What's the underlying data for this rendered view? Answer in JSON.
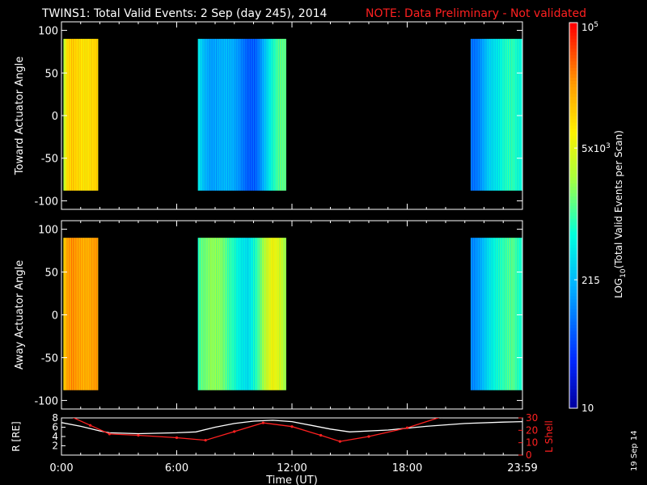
{
  "header": {
    "title": "TWINS1: Total Valid Events:  2 Sep (day 245), 2014",
    "note": "NOTE: Data Preliminary - Not validated"
  },
  "side_stamp": "19 Sep 14",
  "colorbar": {
    "label": "LOG10(Total Valid Events per Scan)",
    "ticks": [
      "10",
      "215",
      "5x10^3",
      "10^5"
    ],
    "tick_values": [
      10,
      215,
      5000,
      100000
    ],
    "scale": "log"
  },
  "chart_data": [
    {
      "type": "heatmap",
      "ylabel": "Toward Actuator Angle",
      "ylim": [
        -110,
        110
      ],
      "yticks": [
        100,
        50,
        0,
        -50,
        -100
      ],
      "data_angle_range": [
        -88,
        90
      ],
      "xlim_hours": [
        0,
        24
      ],
      "data_blocks_hours": [
        [
          0.1,
          2.0
        ],
        [
          7.1,
          11.7
        ],
        [
          21.3,
          24.0
        ]
      ],
      "level_profile_hours": [
        [
          0.1,
          0.55
        ],
        [
          0.3,
          0.72
        ],
        [
          0.6,
          0.78
        ],
        [
          1.0,
          0.79
        ],
        [
          1.5,
          0.78
        ],
        [
          1.9,
          0.76
        ],
        [
          7.1,
          0.45
        ],
        [
          7.3,
          0.4
        ],
        [
          7.8,
          0.33
        ],
        [
          8.3,
          0.3
        ],
        [
          8.7,
          0.27
        ],
        [
          9.2,
          0.25
        ],
        [
          9.7,
          0.23
        ],
        [
          10.1,
          0.25
        ],
        [
          10.6,
          0.35
        ],
        [
          11.0,
          0.42
        ],
        [
          11.4,
          0.48
        ],
        [
          11.7,
          0.5
        ],
        [
          21.3,
          0.27
        ],
        [
          21.7,
          0.28
        ],
        [
          22.2,
          0.33
        ],
        [
          22.7,
          0.35
        ],
        [
          23.1,
          0.45
        ],
        [
          23.5,
          0.52
        ],
        [
          24.0,
          0.48
        ]
      ],
      "colormap": "rainbow"
    },
    {
      "type": "heatmap",
      "ylabel": "Away Actuator Angle",
      "ylim": [
        -110,
        110
      ],
      "yticks": [
        100,
        50,
        0,
        -50,
        -100
      ],
      "data_angle_range": [
        -88,
        90
      ],
      "xlim_hours": [
        0,
        24
      ],
      "data_blocks_hours": [
        [
          0.1,
          2.0
        ],
        [
          7.1,
          11.7
        ],
        [
          21.3,
          24.0
        ]
      ],
      "level_profile_hours": [
        [
          0.1,
          0.7
        ],
        [
          0.3,
          0.8
        ],
        [
          0.6,
          0.86
        ],
        [
          1.0,
          0.87
        ],
        [
          1.5,
          0.86
        ],
        [
          1.9,
          0.84
        ],
        [
          7.1,
          0.5
        ],
        [
          7.3,
          0.58
        ],
        [
          7.8,
          0.62
        ],
        [
          8.3,
          0.55
        ],
        [
          8.7,
          0.45
        ],
        [
          9.2,
          0.4
        ],
        [
          9.7,
          0.42
        ],
        [
          10.1,
          0.52
        ],
        [
          10.6,
          0.63
        ],
        [
          11.0,
          0.66
        ],
        [
          11.4,
          0.6
        ],
        [
          11.7,
          0.55
        ],
        [
          21.3,
          0.3
        ],
        [
          21.7,
          0.32
        ],
        [
          22.2,
          0.36
        ],
        [
          22.7,
          0.4
        ],
        [
          23.1,
          0.48
        ],
        [
          23.5,
          0.56
        ],
        [
          24.0,
          0.5
        ]
      ],
      "colormap": "rainbow"
    },
    {
      "type": "line",
      "xlabel": "Time (UT)",
      "xticks": [
        "0:00",
        "6:00",
        "12:00",
        "18:00",
        "23:59"
      ],
      "xtick_hours": [
        0,
        6,
        12,
        18,
        24
      ],
      "ylabel_left": "R [RE]",
      "ylim_left": [
        0,
        8
      ],
      "yticks_left": [
        8,
        6,
        4,
        2
      ],
      "ylabel_right": "L Shell",
      "ylim_right": [
        0,
        30
      ],
      "yticks_right": [
        30,
        20,
        10,
        0
      ],
      "series": [
        {
          "name": "R [RE]",
          "axis": "left",
          "color": "#ffffff",
          "x": [
            0,
            1,
            2,
            2.5,
            4,
            6,
            7,
            8,
            9,
            10,
            11,
            12,
            13,
            14,
            15,
            17,
            19,
            21,
            23,
            24
          ],
          "y": [
            7.0,
            6.2,
            5.2,
            4.8,
            4.6,
            4.8,
            5.0,
            6.0,
            6.8,
            7.3,
            7.5,
            7.2,
            6.4,
            5.6,
            5.0,
            5.4,
            6.2,
            6.8,
            7.1,
            7.2
          ]
        },
        {
          "name": "L Shell",
          "axis": "right",
          "color": "#ff2020",
          "x": [
            0.5,
            1.5,
            2.5,
            4,
            6,
            7.5,
            9,
            10.5,
            12,
            13.5,
            14.5,
            16,
            18,
            19.8
          ],
          "y": [
            31,
            24,
            17,
            16,
            14,
            12,
            19,
            26,
            23,
            16,
            11,
            15,
            22,
            31
          ]
        }
      ]
    }
  ]
}
